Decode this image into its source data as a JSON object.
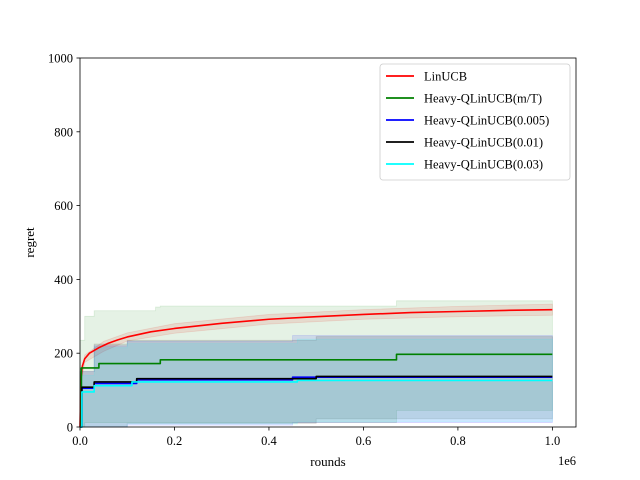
{
  "chart_data": {
    "type": "line",
    "title": "",
    "xlabel": "rounds",
    "ylabel": "regret",
    "x_offset_label": "1e6",
    "xlim": [
      0,
      1.05
    ],
    "ylim": [
      0,
      1000
    ],
    "xticks": [
      0.0,
      0.2,
      0.4,
      0.6,
      0.8,
      1.0
    ],
    "xtick_labels": [
      "0.0",
      "0.2",
      "0.4",
      "0.6",
      "0.8",
      "1.0"
    ],
    "yticks": [
      0,
      200,
      400,
      600,
      800,
      1000
    ],
    "ytick_labels": [
      "0",
      "200",
      "400",
      "600",
      "800",
      "1000"
    ],
    "grid": false,
    "legend_position": "top-right",
    "series": [
      {
        "name": "LinUCB",
        "color": "#ff0000",
        "step": false,
        "points": [
          [
            0,
            0
          ],
          [
            0.002,
            130
          ],
          [
            0.005,
            165
          ],
          [
            0.01,
            185
          ],
          [
            0.02,
            200
          ],
          [
            0.04,
            215
          ],
          [
            0.06,
            227
          ],
          [
            0.08,
            236
          ],
          [
            0.1,
            244
          ],
          [
            0.15,
            258
          ],
          [
            0.2,
            267
          ],
          [
            0.3,
            281
          ],
          [
            0.4,
            292
          ],
          [
            0.5,
            299
          ],
          [
            0.6,
            305
          ],
          [
            0.7,
            310
          ],
          [
            0.8,
            313
          ],
          [
            0.9,
            316
          ],
          [
            1.0,
            318
          ]
        ],
        "band_upper": [
          [
            0,
            0
          ],
          [
            0.002,
            140
          ],
          [
            0.01,
            195
          ],
          [
            0.05,
            232
          ],
          [
            0.1,
            255
          ],
          [
            0.2,
            280
          ],
          [
            0.4,
            305
          ],
          [
            0.6,
            318
          ],
          [
            0.8,
            327
          ],
          [
            1.0,
            333
          ]
        ],
        "band_lower": [
          [
            0,
            0
          ],
          [
            0.002,
            120
          ],
          [
            0.01,
            175
          ],
          [
            0.05,
            205
          ],
          [
            0.1,
            233
          ],
          [
            0.2,
            254
          ],
          [
            0.4,
            279
          ],
          [
            0.6,
            292
          ],
          [
            0.8,
            299
          ],
          [
            1.0,
            303
          ]
        ]
      },
      {
        "name": "Heavy-QLinUCB(m/T)",
        "color": "#008000",
        "step": true,
        "points": [
          [
            0,
            0
          ],
          [
            0.003,
            160
          ],
          [
            0.04,
            172
          ],
          [
            0.17,
            182
          ],
          [
            0.67,
            197
          ],
          [
            1.0,
            197
          ]
        ],
        "band_upper": [
          [
            0,
            235
          ],
          [
            0.01,
            300
          ],
          [
            0.03,
            315
          ],
          [
            0.16,
            325
          ],
          [
            0.17,
            328
          ],
          [
            0.67,
            342
          ],
          [
            1.0,
            342
          ]
        ],
        "band_lower": [
          [
            0,
            0
          ],
          [
            0.01,
            12
          ],
          [
            0.1,
            12
          ],
          [
            0.67,
            45
          ],
          [
            1.0,
            45
          ]
        ]
      },
      {
        "name": "Heavy-QLinUCB(0.005)",
        "color": "#0000ff",
        "step": true,
        "points": [
          [
            0,
            0
          ],
          [
            0.004,
            105
          ],
          [
            0.03,
            118
          ],
          [
            0.12,
            128
          ],
          [
            0.45,
            135
          ],
          [
            1.0,
            135
          ]
        ],
        "band_upper": [
          [
            0,
            150
          ],
          [
            0.03,
            220
          ],
          [
            0.1,
            232
          ],
          [
            0.45,
            248
          ],
          [
            1.0,
            248
          ]
        ],
        "band_lower": [
          [
            0,
            0
          ],
          [
            0.1,
            5
          ],
          [
            0.45,
            12
          ],
          [
            1.0,
            15
          ]
        ]
      },
      {
        "name": "Heavy-QLinUCB(0.01)",
        "color": "#000000",
        "step": true,
        "points": [
          [
            0,
            0
          ],
          [
            0.004,
            108
          ],
          [
            0.03,
            122
          ],
          [
            0.12,
            131
          ],
          [
            0.5,
            137
          ],
          [
            1.0,
            137
          ]
        ],
        "band_upper": [
          [
            0,
            150
          ],
          [
            0.03,
            225
          ],
          [
            0.1,
            235
          ],
          [
            0.5,
            245
          ],
          [
            1.0,
            245
          ]
        ],
        "band_lower": [
          [
            0,
            0
          ],
          [
            0.1,
            10
          ],
          [
            0.5,
            22
          ],
          [
            1.0,
            25
          ]
        ]
      },
      {
        "name": "Heavy-QLinUCB(0.03)",
        "color": "#00ffff",
        "step": true,
        "points": [
          [
            0,
            0
          ],
          [
            0.004,
            95
          ],
          [
            0.03,
            112
          ],
          [
            0.11,
            122
          ],
          [
            0.46,
            126
          ],
          [
            1.0,
            126
          ]
        ],
        "band_upper": [
          [
            0,
            140
          ],
          [
            0.03,
            215
          ],
          [
            0.1,
            226
          ],
          [
            0.46,
            238
          ],
          [
            1.0,
            238
          ]
        ],
        "band_lower": [
          [
            0,
            0
          ],
          [
            0.1,
            8
          ],
          [
            0.46,
            15
          ],
          [
            1.0,
            18
          ]
        ]
      }
    ]
  }
}
